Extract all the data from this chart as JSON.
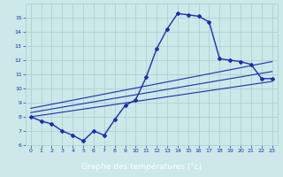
{
  "xlabel": "Graphe des températures (°c)",
  "temp_x": [
    0,
    1,
    2,
    3,
    4,
    5,
    6,
    7,
    8,
    9,
    10,
    11,
    12,
    13,
    14,
    15,
    16,
    17,
    18,
    19,
    20,
    21,
    22,
    23
  ],
  "temp_y": [
    8.0,
    7.7,
    7.5,
    7.0,
    6.7,
    6.3,
    7.0,
    6.7,
    7.8,
    8.8,
    9.2,
    10.8,
    12.8,
    14.2,
    15.3,
    15.2,
    15.1,
    14.7,
    12.1,
    12.0,
    11.9,
    11.7,
    10.7,
    10.7
  ],
  "trend1_x": [
    0,
    23
  ],
  "trend1_y": [
    8.0,
    10.5
  ],
  "trend2_x": [
    0,
    23
  ],
  "trend2_y": [
    8.3,
    11.2
  ],
  "trend3_x": [
    0,
    23
  ],
  "trend3_y": [
    8.6,
    11.9
  ],
  "ylim": [
    6,
    16
  ],
  "xlim": [
    -0.5,
    23.5
  ],
  "yticks": [
    6,
    7,
    8,
    9,
    10,
    11,
    12,
    13,
    14,
    15
  ],
  "xticks": [
    0,
    1,
    2,
    3,
    4,
    5,
    6,
    7,
    8,
    9,
    10,
    11,
    12,
    13,
    14,
    15,
    16,
    17,
    18,
    19,
    20,
    21,
    22,
    23
  ],
  "bg_color": "#cce8e8",
  "line_color": "#1a2fb0",
  "grid_color": "#aacccc",
  "xlabel_bg": "#1a2fb0",
  "xlabel_fg": "#ffffff"
}
